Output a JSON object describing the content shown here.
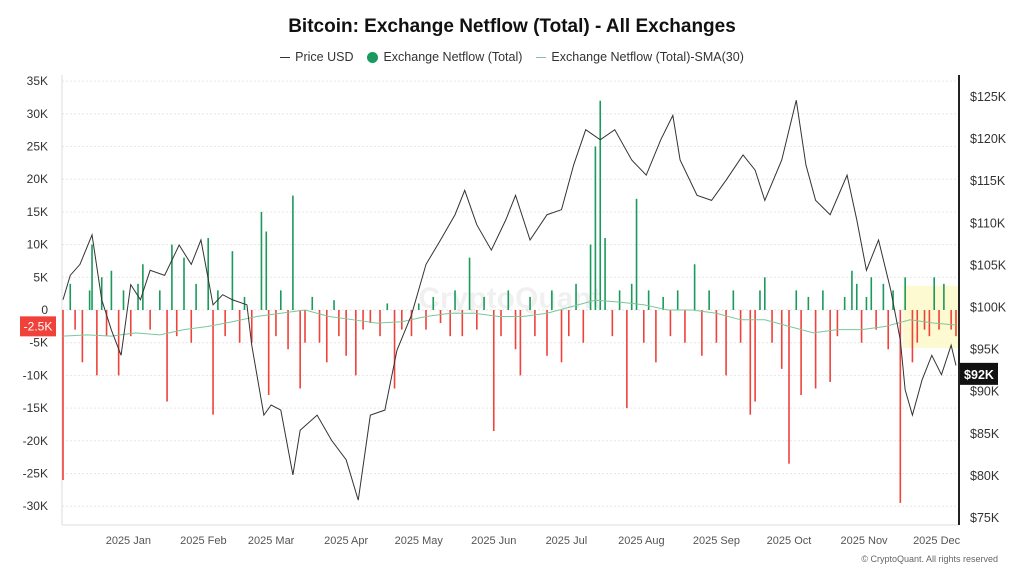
{
  "chart_data": {
    "type": "bar+line",
    "title": "Bitcoin: Exchange Netflow (Total) - All Exchanges",
    "legend": [
      "Price USD",
      "Exchange Netflow (Total)",
      "Exchange Netflow (Total)-SMA(30)"
    ],
    "legend_placement": "top-center",
    "x_unit": "days since start_date",
    "start_date": "2024-12-05",
    "x_range": [
      0,
      370
    ],
    "x_ticks": [
      {
        "day": 27,
        "label": "2025 Jan"
      },
      {
        "day": 58,
        "label": "2025 Feb"
      },
      {
        "day": 86,
        "label": "2025 Mar"
      },
      {
        "day": 117,
        "label": "2025 Apr"
      },
      {
        "day": 147,
        "label": "2025 May"
      },
      {
        "day": 178,
        "label": "2025 Jun"
      },
      {
        "day": 208,
        "label": "2025 Jul"
      },
      {
        "day": 239,
        "label": "2025 Aug"
      },
      {
        "day": 270,
        "label": "2025 Sep"
      },
      {
        "day": 300,
        "label": "2025 Oct"
      },
      {
        "day": 331,
        "label": "2025 Nov"
      },
      {
        "day": 361,
        "label": "2025 Dec"
      }
    ],
    "left_axis": {
      "unit": "K",
      "range": [
        -32,
        35
      ],
      "ticks": [
        35,
        30,
        25,
        20,
        15,
        10,
        5,
        0,
        -5,
        -10,
        -15,
        -20,
        -25,
        -30
      ],
      "labels": [
        "35K",
        "30K",
        "25K",
        "20K",
        "15K",
        "10K",
        "5K",
        "0",
        "-5K",
        "-10K",
        "-15K",
        "-20K",
        "-25K",
        "-30K"
      ]
    },
    "right_axis": {
      "unit": "K USD",
      "range": [
        74,
        127
      ],
      "ticks": [
        125,
        120,
        115,
        110,
        105,
        100,
        95,
        90,
        85,
        80,
        75
      ],
      "labels": [
        "$125K",
        "$120K",
        "$115K",
        "$110K",
        "$105K",
        "$100K",
        "$95K",
        "$90K",
        "$85K",
        "$80K",
        "$75K"
      ]
    },
    "grid": true,
    "current_netflow_label": "-2.5K",
    "current_price_label": "$92K",
    "current_netflow": -2.5,
    "current_price": 92,
    "highlight_region": {
      "day_range": [
        348,
        370
      ],
      "netflow_range": [
        -5.8,
        3.7
      ]
    },
    "price": [
      [
        0,
        100.8
      ],
      [
        3,
        103.7
      ],
      [
        7,
        105
      ],
      [
        12,
        108.5
      ],
      [
        16,
        100.8
      ],
      [
        20,
        97.2
      ],
      [
        24,
        94.2
      ],
      [
        28,
        102.6
      ],
      [
        32,
        100.8
      ],
      [
        36,
        104.3
      ],
      [
        42,
        103.7
      ],
      [
        48,
        107.3
      ],
      [
        53,
        105
      ],
      [
        57,
        107.9
      ],
      [
        62,
        100.2
      ],
      [
        66,
        101.4
      ],
      [
        70,
        100.8
      ],
      [
        76,
        100.2
      ],
      [
        78,
        95.4
      ],
      [
        83,
        87.1
      ],
      [
        86,
        88.3
      ],
      [
        90,
        87.7
      ],
      [
        95,
        80
      ],
      [
        98,
        85.3
      ],
      [
        105,
        87.1
      ],
      [
        111,
        84.1
      ],
      [
        117,
        81.8
      ],
      [
        122,
        77
      ],
      [
        127,
        87.1
      ],
      [
        133,
        87.7
      ],
      [
        138,
        94.8
      ],
      [
        144,
        99
      ],
      [
        150,
        105
      ],
      [
        156,
        107.9
      ],
      [
        162,
        110.9
      ],
      [
        166,
        113.8
      ],
      [
        171,
        109.7
      ],
      [
        177,
        106.7
      ],
      [
        183,
        110.3
      ],
      [
        187,
        113.2
      ],
      [
        193,
        107.9
      ],
      [
        200,
        110.9
      ],
      [
        206,
        111.5
      ],
      [
        211,
        116.8
      ],
      [
        216,
        121
      ],
      [
        222,
        119.8
      ],
      [
        228,
        121
      ],
      [
        235,
        117.4
      ],
      [
        241,
        115.6
      ],
      [
        247,
        119.8
      ],
      [
        252,
        122.7
      ],
      [
        255,
        117.4
      ],
      [
        262,
        113.2
      ],
      [
        268,
        112.6
      ],
      [
        274,
        115
      ],
      [
        281,
        118
      ],
      [
        286,
        116.2
      ],
      [
        290,
        112.6
      ],
      [
        297,
        117.4
      ],
      [
        303,
        124.5
      ],
      [
        307,
        116.8
      ],
      [
        311,
        112.6
      ],
      [
        317,
        110.9
      ],
      [
        324,
        115.6
      ],
      [
        328,
        110.3
      ],
      [
        332,
        104.3
      ],
      [
        337,
        107.9
      ],
      [
        342,
        102
      ],
      [
        346,
        96
      ],
      [
        348,
        90.1
      ],
      [
        351,
        87.1
      ],
      [
        355,
        91.3
      ],
      [
        359,
        94.2
      ],
      [
        363,
        91.9
      ],
      [
        367,
        95.4
      ],
      [
        369,
        93
      ]
    ],
    "netflow": [
      [
        0,
        -26
      ],
      [
        3,
        4
      ],
      [
        5,
        -3
      ],
      [
        8,
        -8
      ],
      [
        11,
        3
      ],
      [
        12,
        10
      ],
      [
        14,
        -10
      ],
      [
        16,
        5
      ],
      [
        18,
        -4
      ],
      [
        20,
        6
      ],
      [
        23,
        -10
      ],
      [
        25,
        3
      ],
      [
        28,
        -4
      ],
      [
        31,
        4
      ],
      [
        33,
        7
      ],
      [
        36,
        -3
      ],
      [
        40,
        3
      ],
      [
        43,
        -14
      ],
      [
        45,
        10
      ],
      [
        47,
        -4
      ],
      [
        50,
        8
      ],
      [
        53,
        -5
      ],
      [
        55,
        4
      ],
      [
        60,
        11
      ],
      [
        62,
        -16
      ],
      [
        64,
        3
      ],
      [
        67,
        -4
      ],
      [
        70,
        9
      ],
      [
        73,
        -5
      ],
      [
        75,
        2
      ],
      [
        78,
        -5
      ],
      [
        82,
        15
      ],
      [
        84,
        12
      ],
      [
        85,
        -13
      ],
      [
        88,
        -4
      ],
      [
        90,
        3
      ],
      [
        93,
        -6
      ],
      [
        95,
        17.5
      ],
      [
        98,
        -12
      ],
      [
        100,
        -5
      ],
      [
        103,
        2
      ],
      [
        106,
        -5
      ],
      [
        109,
        -8
      ],
      [
        112,
        1.5
      ],
      [
        114,
        -4
      ],
      [
        117,
        -7
      ],
      [
        121,
        -10
      ],
      [
        124,
        -3
      ],
      [
        127,
        -2
      ],
      [
        131,
        -4
      ],
      [
        134,
        1
      ],
      [
        137,
        -12
      ],
      [
        140,
        -3
      ],
      [
        144,
        -4
      ],
      [
        147,
        1
      ],
      [
        150,
        -3
      ],
      [
        153,
        2
      ],
      [
        156,
        -2
      ],
      [
        160,
        -4
      ],
      [
        162,
        3
      ],
      [
        165,
        -4
      ],
      [
        168,
        8
      ],
      [
        171,
        -3
      ],
      [
        174,
        2
      ],
      [
        178,
        -18.5
      ],
      [
        181,
        -4
      ],
      [
        184,
        3
      ],
      [
        187,
        -6
      ],
      [
        189,
        -10
      ],
      [
        193,
        2
      ],
      [
        195,
        -4
      ],
      [
        200,
        -7
      ],
      [
        202,
        3
      ],
      [
        206,
        -8
      ],
      [
        209,
        -4
      ],
      [
        212,
        4
      ],
      [
        215,
        -5
      ],
      [
        218,
        10
      ],
      [
        220,
        25
      ],
      [
        222,
        32
      ],
      [
        224,
        11
      ],
      [
        227,
        -4
      ],
      [
        230,
        3
      ],
      [
        233,
        -15
      ],
      [
        235,
        4
      ],
      [
        237,
        17
      ],
      [
        240,
        -5
      ],
      [
        242,
        3
      ],
      [
        245,
        -8
      ],
      [
        248,
        2
      ],
      [
        251,
        -4
      ],
      [
        254,
        3
      ],
      [
        257,
        -5
      ],
      [
        261,
        7
      ],
      [
        264,
        -7
      ],
      [
        267,
        3
      ],
      [
        270,
        -5
      ],
      [
        274,
        -10
      ],
      [
        277,
        3
      ],
      [
        280,
        -5
      ],
      [
        284,
        -16
      ],
      [
        286,
        -14
      ],
      [
        288,
        3
      ],
      [
        290,
        5
      ],
      [
        293,
        -5
      ],
      [
        297,
        -9
      ],
      [
        300,
        -23.5
      ],
      [
        303,
        3
      ],
      [
        305,
        -13
      ],
      [
        308,
        2
      ],
      [
        311,
        -12
      ],
      [
        314,
        3
      ],
      [
        317,
        -11
      ],
      [
        320,
        -4
      ],
      [
        323,
        2
      ],
      [
        326,
        6
      ],
      [
        328,
        4
      ],
      [
        330,
        -5
      ],
      [
        332,
        2
      ],
      [
        334,
        5
      ],
      [
        336,
        -3
      ],
      [
        339,
        4
      ],
      [
        341,
        -6
      ],
      [
        343,
        3
      ],
      [
        346,
        -29.5
      ],
      [
        348,
        5
      ],
      [
        351,
        -8
      ],
      [
        353,
        -5
      ],
      [
        356,
        -3
      ],
      [
        358,
        -4
      ],
      [
        360,
        5
      ],
      [
        362,
        -3
      ],
      [
        364,
        4
      ],
      [
        367,
        -3
      ],
      [
        369,
        -4
      ]
    ],
    "sma30": [
      [
        0,
        -4
      ],
      [
        10,
        -3.8
      ],
      [
        20,
        -4
      ],
      [
        30,
        -3.5
      ],
      [
        40,
        -3.8
      ],
      [
        50,
        -3
      ],
      [
        60,
        -2.5
      ],
      [
        70,
        -1.8
      ],
      [
        80,
        -1
      ],
      [
        90,
        -0.5
      ],
      [
        100,
        0
      ],
      [
        110,
        -1
      ],
      [
        120,
        -1.5
      ],
      [
        130,
        -2
      ],
      [
        140,
        -1.8
      ],
      [
        150,
        -1
      ],
      [
        160,
        -0.5
      ],
      [
        170,
        -0.5
      ],
      [
        180,
        -1
      ],
      [
        190,
        -1
      ],
      [
        200,
        -0.5
      ],
      [
        210,
        0.5
      ],
      [
        220,
        1.5
      ],
      [
        230,
        1.2
      ],
      [
        240,
        0.8
      ],
      [
        250,
        0
      ],
      [
        260,
        0
      ],
      [
        270,
        -0.5
      ],
      [
        280,
        -1.5
      ],
      [
        290,
        -1.5
      ],
      [
        300,
        -2.5
      ],
      [
        310,
        -3.5
      ],
      [
        320,
        -3
      ],
      [
        330,
        -3
      ],
      [
        340,
        -2.5
      ],
      [
        350,
        -1.5
      ],
      [
        360,
        -2
      ],
      [
        369,
        -2.3
      ]
    ]
  },
  "watermark": "CryptoQuant",
  "footer": "© CryptoQuant. All rights reserved",
  "colors": {
    "inflow": "#1a9a5c",
    "outflow": "#f0413a",
    "price": "#333333",
    "sma": "#7cc79a",
    "highlight": "#fdf8c8"
  }
}
